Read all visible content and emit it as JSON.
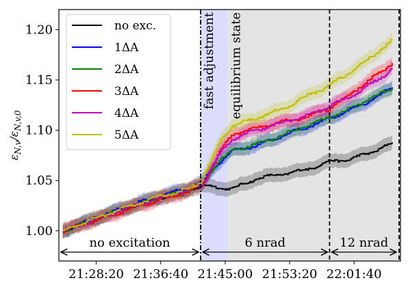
{
  "chart_data": {
    "type": "line",
    "ylabel": "ε_{N,v}/ε_{N,v,0}",
    "ylim": [
      0.97,
      1.22
    ],
    "yticks": [
      1.0,
      1.05,
      1.1,
      1.15,
      1.2
    ],
    "ytick_labels": [
      "1.00",
      "1.05",
      "1.10",
      "1.15",
      "1.20"
    ],
    "x_range_time": [
      "21:23:30",
      "22:07:40"
    ],
    "xticks": [
      "21:28:20",
      "21:36:40",
      "21:45:00",
      "21:53:20",
      "22:01:40"
    ],
    "xtick_labels": [
      "21:28:20",
      "21:36:40",
      "21:45:00",
      "21:53:20",
      "22:01:40"
    ],
    "grid": false,
    "legend_position": "upper-left",
    "regions": [
      {
        "type": "span",
        "label": "fast adjustment",
        "start": "21:41:50",
        "end": "21:45:20",
        "color": "#dcdcfc",
        "label_color": "#0000dd"
      },
      {
        "type": "span",
        "label": "equilibrium state",
        "start": "21:45:20",
        "end": "22:07:40",
        "color": "#e4e4e4",
        "label_color": "#000000"
      }
    ],
    "vlines": [
      {
        "time": "21:41:50",
        "style": "dash-dot"
      },
      {
        "time": "21:58:30",
        "style": "dashed"
      },
      {
        "time": "22:07:40",
        "style": "dashed"
      }
    ],
    "annotations": [
      {
        "label": "no excitation",
        "start": "21:23:30",
        "end": "21:41:50"
      },
      {
        "label": "6 nrad",
        "start": "21:41:50",
        "end": "21:58:30"
      },
      {
        "label": "12 nrad",
        "start": "21:58:30",
        "end": "22:07:40"
      }
    ],
    "series": [
      {
        "name": "no exc.",
        "color": "#000000",
        "x": [
          "21:24:00",
          "21:28:00",
          "21:32:00",
          "21:36:00",
          "21:40:00",
          "21:42:00",
          "21:44:00",
          "21:46:00",
          "21:49:00",
          "21:52:00",
          "21:55:00",
          "21:58:30",
          "22:01:00",
          "22:03:00",
          "22:05:00",
          "22:06:40"
        ],
        "y": [
          1.0,
          1.012,
          1.022,
          1.032,
          1.04,
          1.045,
          1.043,
          1.042,
          1.052,
          1.056,
          1.06,
          1.069,
          1.071,
          1.076,
          1.082,
          1.087
        ]
      },
      {
        "name": "1ΔA",
        "color": "#0000ff",
        "x": [
          "21:24:00",
          "21:28:00",
          "21:32:00",
          "21:36:00",
          "21:40:00",
          "21:42:00",
          "21:43:00",
          "21:44:30",
          "21:46:00",
          "21:49:00",
          "21:52:00",
          "21:55:00",
          "21:58:30",
          "22:01:00",
          "22:03:00",
          "22:05:00",
          "22:06:40"
        ],
        "y": [
          1.0,
          1.012,
          1.024,
          1.034,
          1.042,
          1.048,
          1.058,
          1.07,
          1.08,
          1.085,
          1.093,
          1.102,
          1.112,
          1.12,
          1.127,
          1.135,
          1.143
        ]
      },
      {
        "name": "2ΔA",
        "color": "#008000",
        "x": [
          "21:24:00",
          "21:28:00",
          "21:32:00",
          "21:36:00",
          "21:40:00",
          "21:42:00",
          "21:43:00",
          "21:44:30",
          "21:46:00",
          "21:49:00",
          "21:52:00",
          "21:55:00",
          "21:58:30",
          "22:01:00",
          "22:03:00",
          "22:05:00",
          "22:06:40"
        ],
        "y": [
          1.0,
          1.011,
          1.022,
          1.032,
          1.04,
          1.046,
          1.058,
          1.072,
          1.08,
          1.086,
          1.094,
          1.103,
          1.113,
          1.121,
          1.129,
          1.136,
          1.143
        ]
      },
      {
        "name": "3ΔA",
        "color": "#ff0000",
        "x": [
          "21:24:00",
          "21:28:00",
          "21:32:00",
          "21:36:00",
          "21:40:00",
          "21:42:00",
          "21:43:00",
          "21:44:30",
          "21:46:00",
          "21:49:00",
          "21:52:00",
          "21:55:00",
          "21:58:30",
          "22:01:00",
          "22:03:00",
          "22:05:00",
          "22:06:40"
        ],
        "y": [
          1.0,
          1.01,
          1.02,
          1.03,
          1.038,
          1.046,
          1.06,
          1.082,
          1.096,
          1.102,
          1.108,
          1.112,
          1.122,
          1.135,
          1.147,
          1.157,
          1.168
        ]
      },
      {
        "name": "4ΔA",
        "color": "#bf00bf",
        "x": [
          "21:24:00",
          "21:28:00",
          "21:32:00",
          "21:36:00",
          "21:40:00",
          "21:42:00",
          "21:43:00",
          "21:44:30",
          "21:46:00",
          "21:49:00",
          "21:52:00",
          "21:55:00",
          "21:58:30",
          "22:01:00",
          "22:03:00",
          "22:05:00",
          "22:06:40"
        ],
        "y": [
          1.0,
          1.011,
          1.022,
          1.032,
          1.04,
          1.047,
          1.06,
          1.08,
          1.092,
          1.1,
          1.107,
          1.113,
          1.124,
          1.133,
          1.142,
          1.152,
          1.162
        ]
      },
      {
        "name": "5ΔA",
        "color": "#bfbf00",
        "x": [
          "21:24:00",
          "21:28:00",
          "21:32:00",
          "21:36:00",
          "21:40:00",
          "21:42:00",
          "21:43:00",
          "21:44:30",
          "21:46:00",
          "21:49:00",
          "21:52:00",
          "21:55:00",
          "21:58:30",
          "22:01:00",
          "22:03:00",
          "22:05:00",
          "22:06:40"
        ],
        "y": [
          1.0,
          1.012,
          1.023,
          1.033,
          1.041,
          1.05,
          1.068,
          1.092,
          1.105,
          1.112,
          1.12,
          1.132,
          1.145,
          1.157,
          1.168,
          1.18,
          1.19
        ]
      }
    ]
  }
}
